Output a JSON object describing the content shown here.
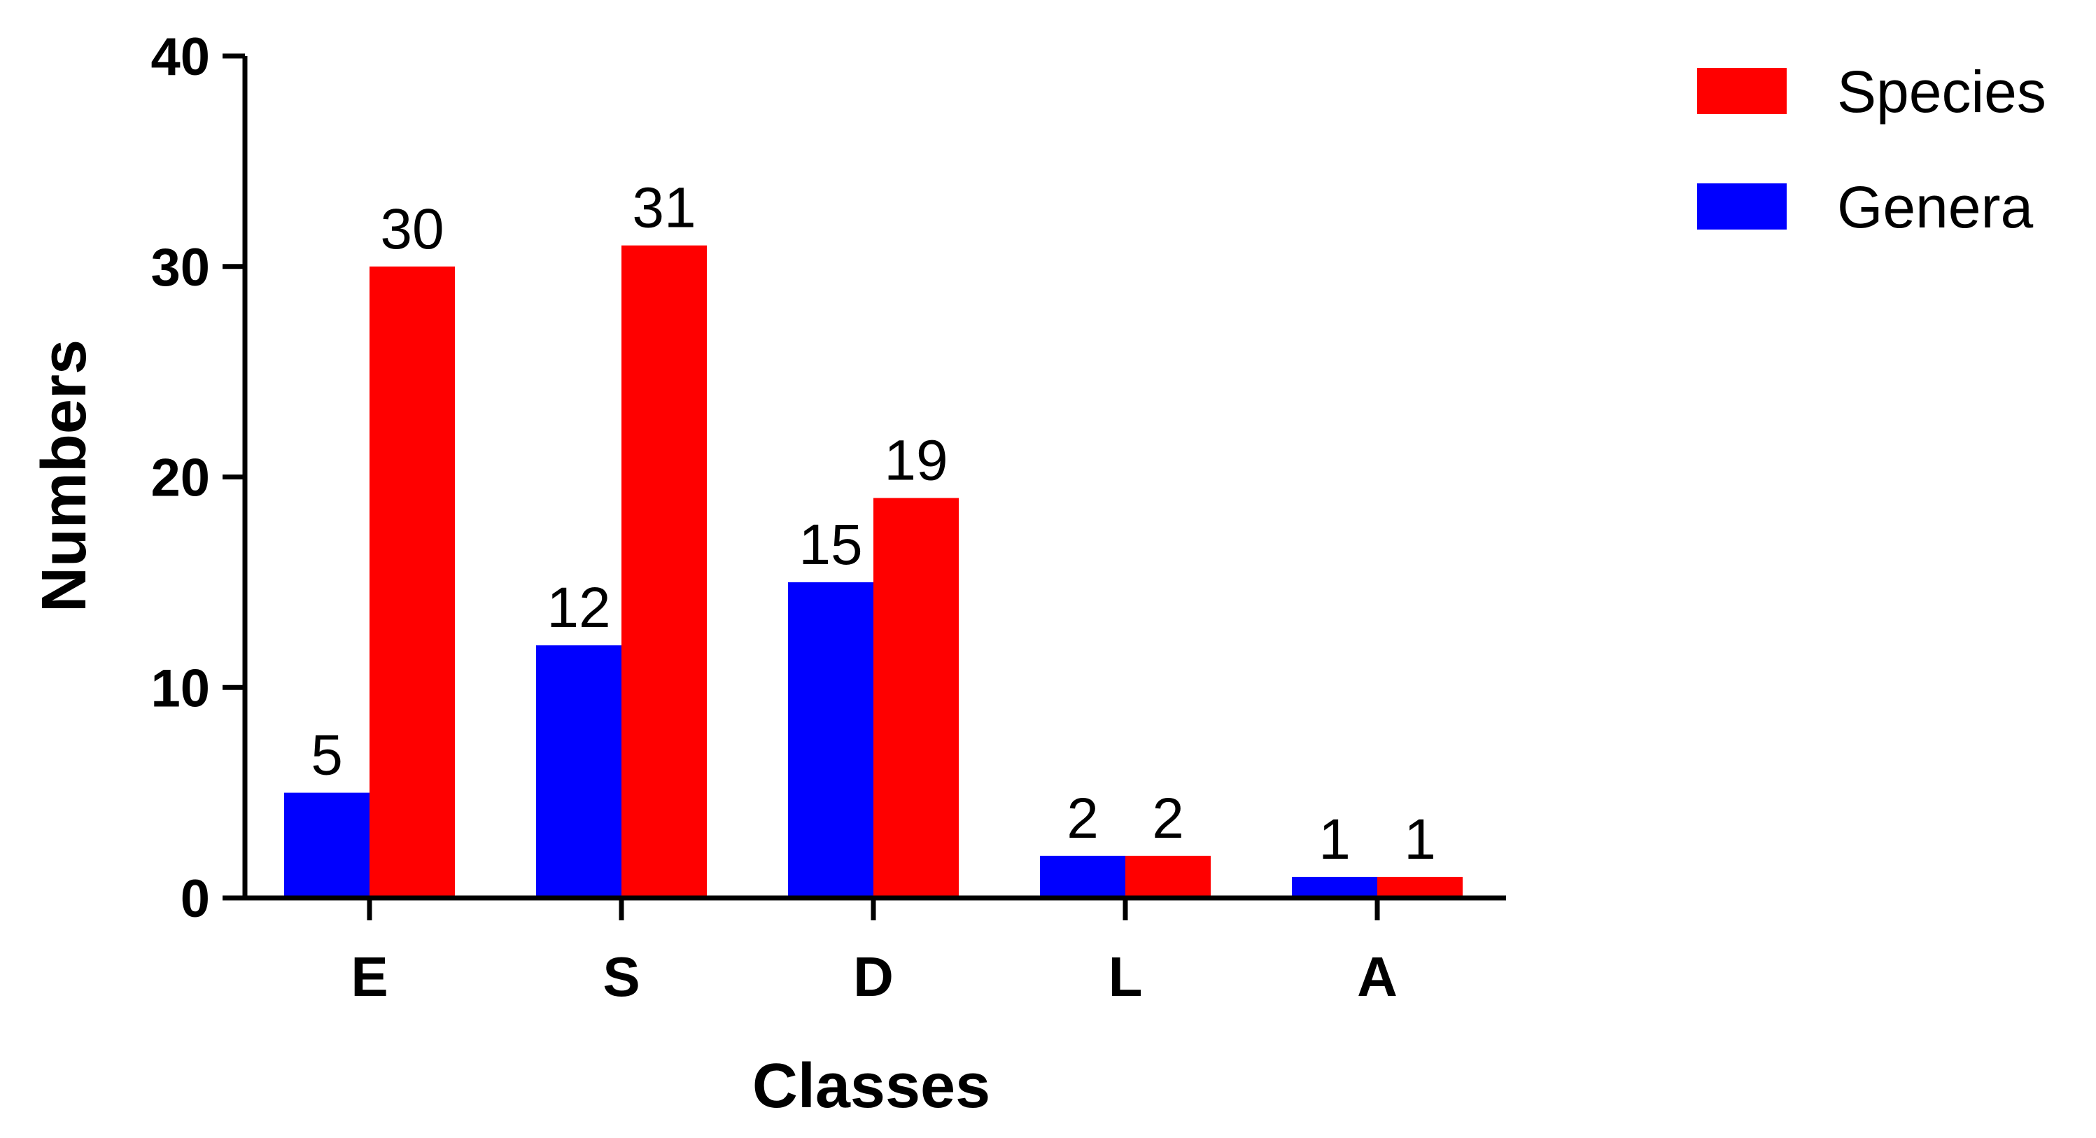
{
  "chart_data": {
    "type": "bar",
    "xlabel": "Classes",
    "ylabel": "Numbers",
    "categories": [
      "E",
      "S",
      "D",
      "L",
      "A"
    ],
    "series": [
      {
        "name": "Genera",
        "color": "#0000FF",
        "values": [
          5,
          12,
          15,
          2,
          1
        ]
      },
      {
        "name": "Species",
        "color": "#FF0000",
        "values": [
          30,
          31,
          19,
          2,
          1
        ]
      }
    ],
    "legend_order": [
      "Species",
      "Genera"
    ],
    "legend_position": "top-right",
    "ylim": [
      0,
      40
    ],
    "yticks": [
      0,
      10,
      20,
      30,
      40
    ],
    "grid": false,
    "data_labels": true
  }
}
